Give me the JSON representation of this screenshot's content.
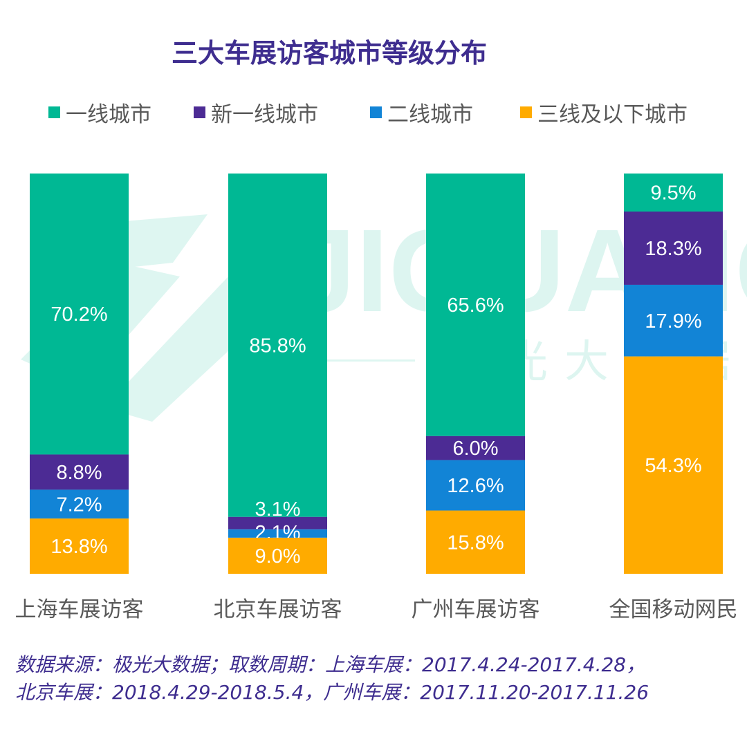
{
  "title": "三大车展访客城市等级分布",
  "colors": {
    "tier1": "#00b894",
    "new_tier1": "#4c2b94",
    "tier2": "#1284d6",
    "tier3": "#ffab00",
    "title": "#3e2d8f",
    "axis_text": "#595959"
  },
  "watermark": {
    "latin": "JIGUANG",
    "cjk": "极光大数据"
  },
  "chart_data": {
    "type": "bar",
    "stacked": true,
    "normalized": true,
    "title": "三大车展访客城市等级分布",
    "xlabel": "",
    "ylabel": "",
    "ylim": [
      0,
      100
    ],
    "legend_position": "top",
    "categories": [
      "上海车展访客",
      "北京车展访客",
      "广州车展访客",
      "全国移动网民"
    ],
    "series": [
      {
        "name": "一线城市",
        "key": "tier1",
        "values": [
          70.2,
          85.8,
          65.6,
          9.5
        ],
        "labels": [
          "70.2%",
          "85.8%",
          "65.6%",
          "9.5%"
        ]
      },
      {
        "name": "新一线城市",
        "key": "new_tier1",
        "values": [
          8.8,
          3.1,
          6.0,
          18.3
        ],
        "labels": [
          "8.8%",
          "3.1%",
          "6.0%",
          "18.3%"
        ]
      },
      {
        "name": "二线城市",
        "key": "tier2",
        "values": [
          7.2,
          2.1,
          12.6,
          17.9
        ],
        "labels": [
          "7.2%",
          "2.1%",
          "12.6%",
          "17.9%"
        ]
      },
      {
        "name": "三线及以下城市",
        "key": "tier3",
        "values": [
          13.8,
          9.0,
          15.8,
          54.3
        ],
        "labels": [
          "13.8%",
          "9.0%",
          "15.8%",
          "54.3%"
        ]
      }
    ]
  },
  "source": {
    "line1": "数据来源：极光大数据；取数周期：上海车展：2017.4.24-2017.4.28，",
    "line2": "北京车展：2018.4.29-2018.5.4，广州车展：2017.11.20-2017.11.26"
  }
}
